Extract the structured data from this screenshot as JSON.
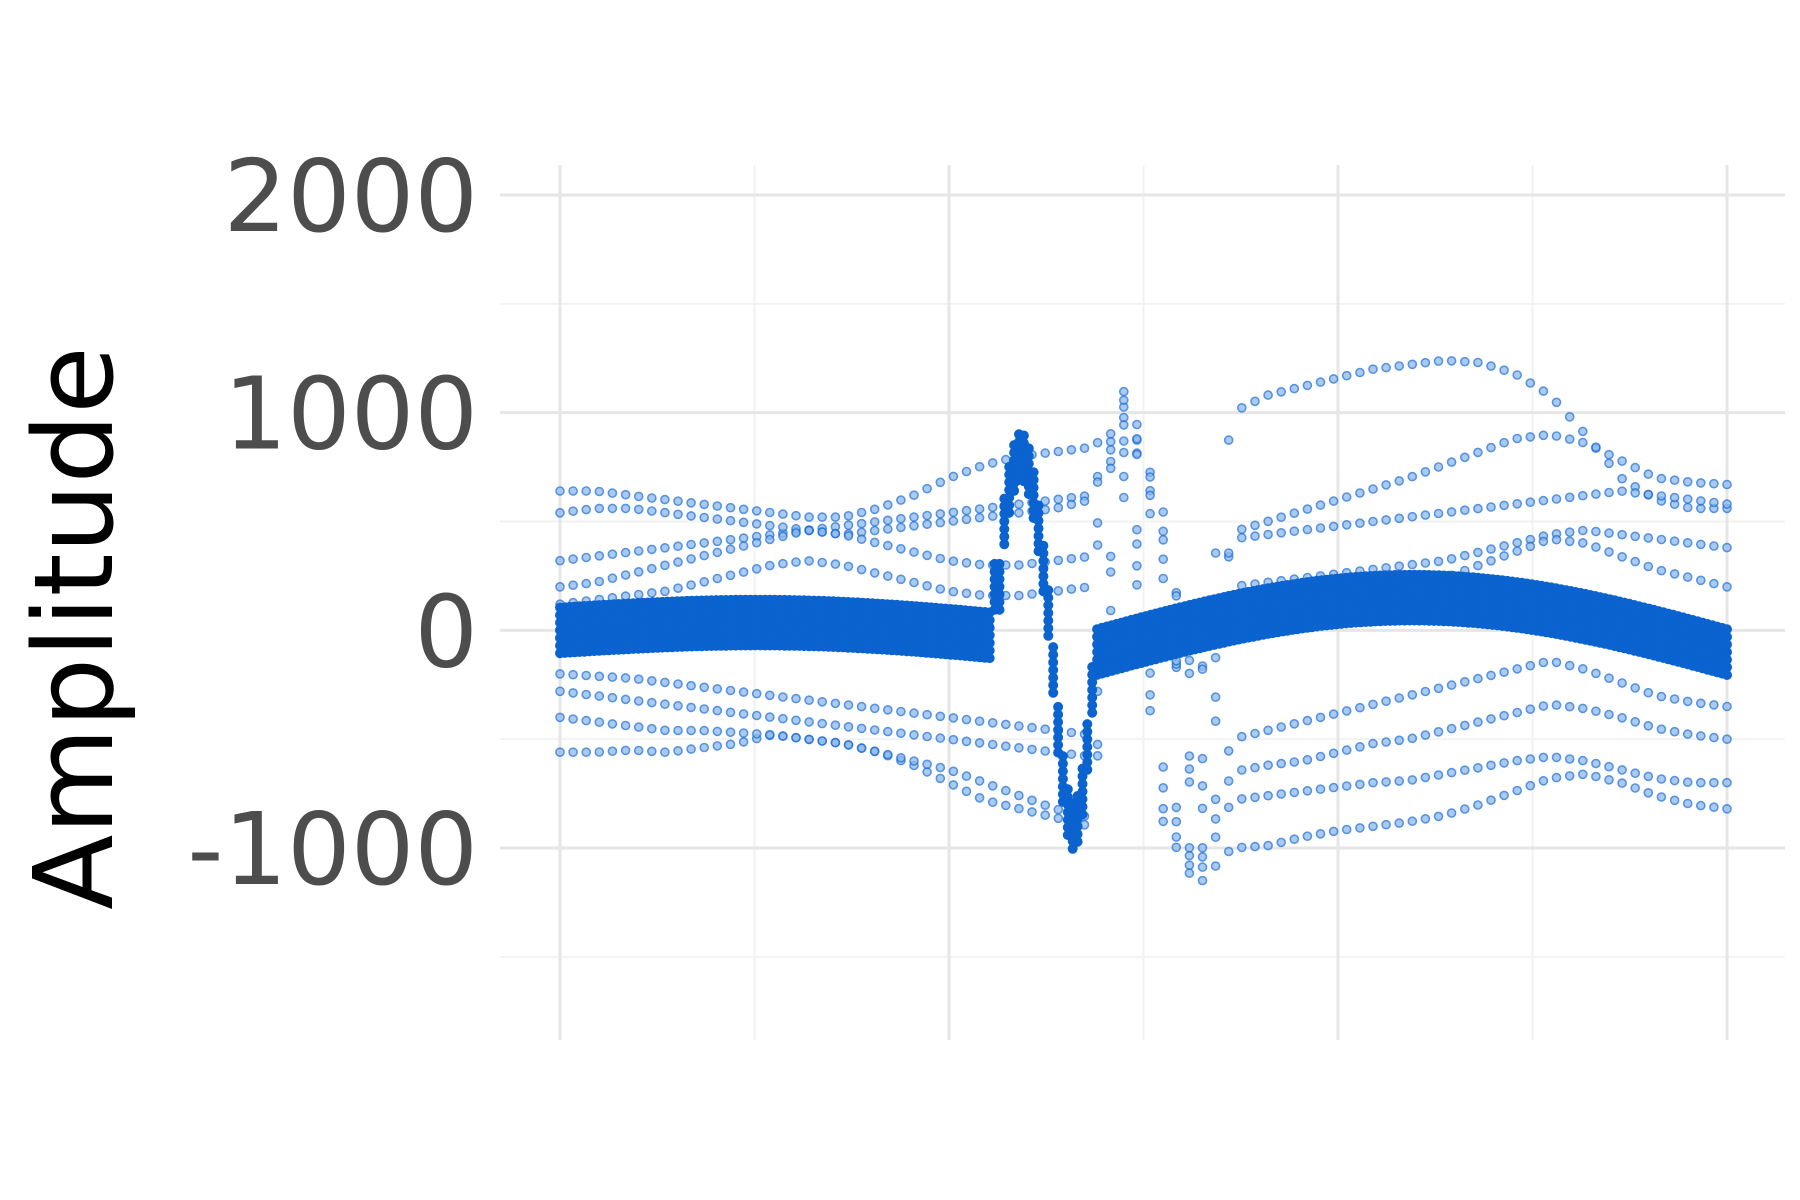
{
  "chart_data": {
    "type": "scatter",
    "title": "",
    "xlabel": "",
    "ylabel": "Amplitude",
    "ylim": [
      -1900,
      2200
    ],
    "xlim": [
      0,
      1
    ],
    "yticks": [
      -1000,
      0,
      1000,
      2000
    ],
    "ytick_labels": [
      "-1000",
      "0",
      "1000",
      "2000"
    ],
    "grid": true,
    "legend": "none",
    "point_color": "#0a63cf",
    "series": [
      {
        "values": [
          -560,
          -560,
          -550,
          -560,
          -540,
          -520,
          -480,
          -500,
          -520,
          -560,
          -620,
          -700,
          -780,
          -820,
          -860,
          -900,
          700,
          -860,
          -1180,
          -1000,
          -990,
          -950,
          -920,
          -900,
          -880,
          -850,
          -800,
          -740,
          -680,
          -660,
          -700,
          -760,
          -800,
          -820
        ]
      },
      {
        "values": [
          -400,
          -420,
          -440,
          -460,
          -460,
          -470,
          -480,
          -500,
          -520,
          -560,
          -600,
          -640,
          -700,
          -760,
          -820,
          -860,
          800,
          -800,
          -1150,
          -780,
          -760,
          -740,
          -720,
          -700,
          -690,
          -660,
          -630,
          -600,
          -580,
          -600,
          -640,
          -680,
          -700,
          -700
        ]
      },
      {
        "values": [
          -280,
          -300,
          -320,
          -340,
          -360,
          -380,
          -400,
          -420,
          -440,
          -460,
          -480,
          -500,
          -520,
          -540,
          -560,
          -580,
          900,
          -700,
          -1120,
          -650,
          -620,
          -600,
          -560,
          -520,
          -500,
          -460,
          -420,
          -380,
          -340,
          -360,
          -400,
          -450,
          -480,
          -500
        ]
      },
      {
        "values": [
          -200,
          -210,
          -220,
          -240,
          -260,
          -280,
          -300,
          -320,
          -340,
          -360,
          -380,
          -400,
          -420,
          -440,
          -460,
          -480,
          950,
          -600,
          -1100,
          -500,
          -460,
          -420,
          -380,
          -340,
          -300,
          -260,
          -220,
          -180,
          -140,
          -180,
          -240,
          -300,
          -330,
          -350
        ]
      },
      {
        "values": [
          320,
          340,
          360,
          380,
          400,
          420,
          440,
          460,
          480,
          500,
          520,
          540,
          560,
          580,
          600,
          620,
          1050,
          300,
          -800,
          450,
          500,
          550,
          600,
          650,
          700,
          760,
          820,
          880,
          900,
          860,
          780,
          700,
          680,
          670
        ]
      },
      {
        "values": [
          540,
          560,
          560,
          540,
          520,
          500,
          480,
          460,
          440,
          460,
          480,
          500,
          520,
          540,
          560,
          600,
          1000,
          600,
          -400,
          1000,
          1080,
          1120,
          1160,
          1200,
          1220,
          1240,
          1230,
          1180,
          1080,
          900,
          700,
          600,
          560,
          560
        ]
      },
      {
        "values": [
          640,
          640,
          620,
          600,
          580,
          560,
          540,
          520,
          520,
          560,
          620,
          700,
          760,
          800,
          820,
          840,
          950,
          500,
          -300,
          420,
          440,
          460,
          480,
          500,
          520,
          540,
          560,
          580,
          600,
          620,
          640,
          620,
          600,
          580
        ]
      },
      {
        "values": [
          200,
          220,
          260,
          300,
          340,
          380,
          420,
          460,
          440,
          400,
          360,
          320,
          300,
          300,
          320,
          340,
          1100,
          400,
          -900,
          200,
          220,
          240,
          260,
          280,
          300,
          320,
          360,
          400,
          440,
          460,
          440,
          420,
          400,
          380
        ]
      },
      {
        "values": [
          120,
          140,
          160,
          180,
          220,
          260,
          300,
          320,
          300,
          260,
          220,
          180,
          160,
          160,
          180,
          200,
          1150,
          500,
          -1000,
          80,
          100,
          120,
          140,
          160,
          200,
          240,
          300,
          360,
          420,
          400,
          340,
          280,
          240,
          200
        ]
      }
    ]
  }
}
